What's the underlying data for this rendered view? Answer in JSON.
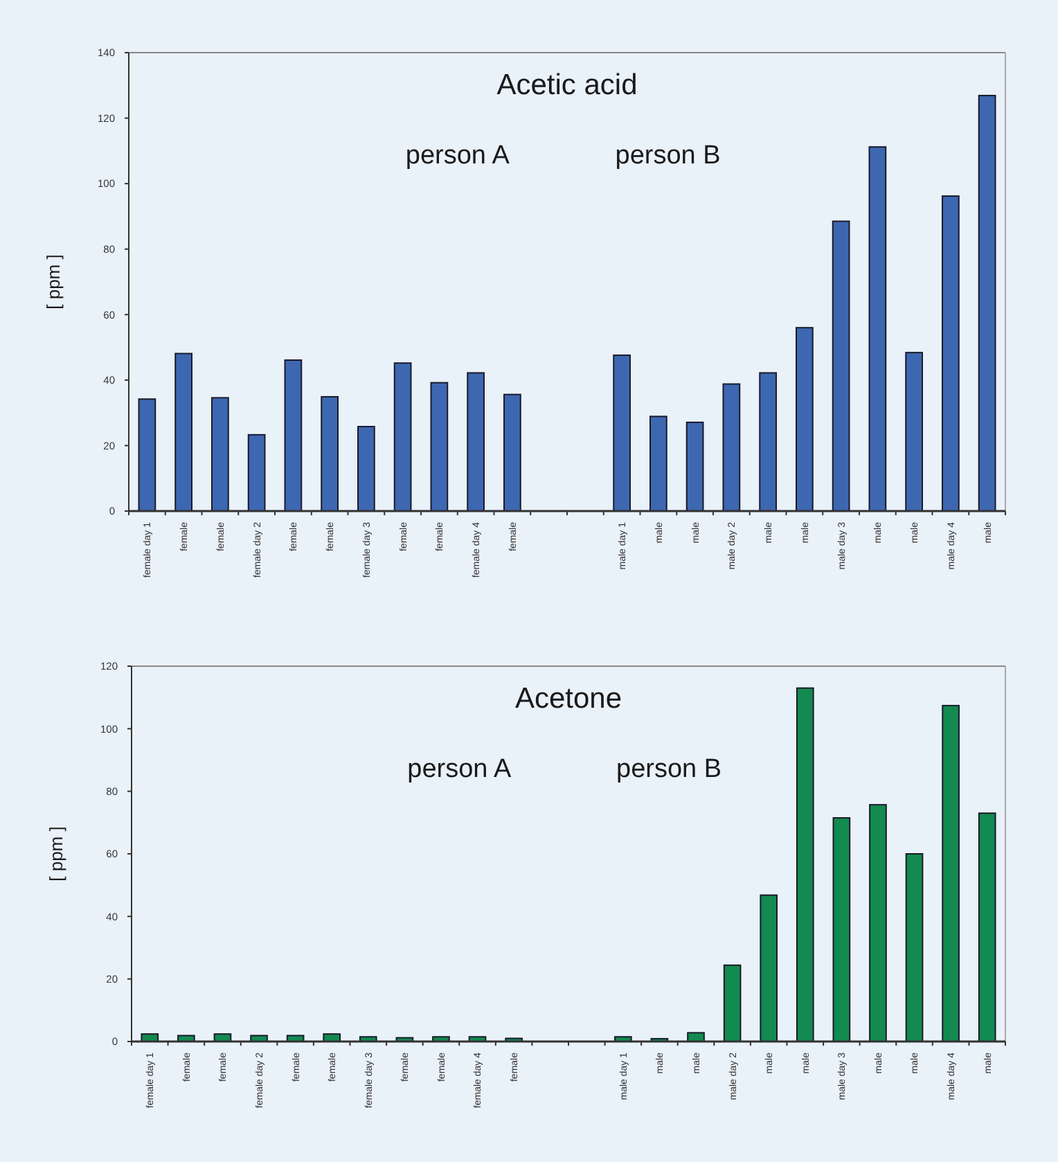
{
  "chart_data": [
    {
      "type": "bar",
      "title": "Acetic acid",
      "ylabel": "[ ppm ]",
      "annotations": [
        "person A",
        "person B"
      ],
      "categories": [
        "female day 1",
        "female",
        "female",
        "female day 2",
        "female",
        "female",
        "female day 3",
        "female",
        "female",
        "female day 4",
        "female",
        null,
        null,
        "male day 1",
        "male",
        "male",
        "male day 2",
        "male",
        "male",
        "male day 3",
        "male",
        "male",
        "male day 4",
        "male"
      ],
      "values": [
        34.2,
        48.1,
        34.6,
        23.3,
        46.1,
        34.9,
        25.8,
        45.2,
        39.2,
        42.2,
        35.6,
        null,
        null,
        47.6,
        28.9,
        27.1,
        38.8,
        42.2,
        56.0,
        88.5,
        111.2,
        48.4,
        96.2,
        126.9
      ],
      "color": "#3d67b1",
      "ylim": [
        0,
        140
      ],
      "yticks": [
        0,
        20,
        40,
        60,
        80,
        100,
        120,
        140
      ]
    },
    {
      "type": "bar",
      "title": "Acetone",
      "ylabel": "[ ppm ]",
      "annotations": [
        "person A",
        "person B"
      ],
      "categories": [
        "female day 1",
        "female",
        "female",
        "female day 2",
        "female",
        "female",
        "female day 3",
        "female",
        "female",
        "female day 4",
        "female",
        null,
        null,
        "male day 1",
        "male",
        "male",
        "male day 2",
        "male",
        "male",
        "male day 3",
        "male",
        "male",
        "male day 4",
        "male"
      ],
      "values": [
        2.4,
        1.9,
        2.4,
        1.9,
        1.9,
        2.4,
        1.5,
        1.2,
        1.5,
        1.5,
        1.0,
        null,
        null,
        1.5,
        0.9,
        2.8,
        24.4,
        46.8,
        113.0,
        71.5,
        75.7,
        60.0,
        107.4,
        73.0
      ],
      "color": "#138a4f",
      "ylim": [
        0,
        120
      ],
      "yticks": [
        0,
        20,
        40,
        60,
        80,
        100,
        120
      ]
    }
  ]
}
